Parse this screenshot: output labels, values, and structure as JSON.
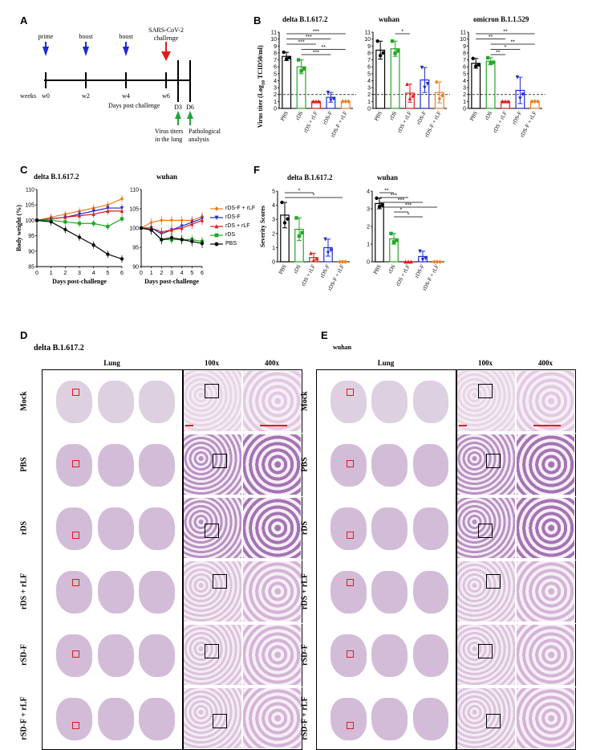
{
  "panels": {
    "A": "A",
    "B": "B",
    "C": "C",
    "D": "D",
    "E": "E",
    "F": "F"
  },
  "timeline": {
    "events": [
      "prime",
      "boost",
      "boost",
      "SARS-CoV-2",
      "challenge"
    ],
    "weeks_label": "weeks",
    "weeks": [
      "w0",
      "w2",
      "w4",
      "w6"
    ],
    "days_post_label": "Days post challenge",
    "days": [
      "D3",
      "D6"
    ],
    "outcome1": [
      "Virus titers",
      "in the lung"
    ],
    "outcome2": [
      "Pathological",
      "analysis"
    ]
  },
  "panel_b": {
    "ylabel": "Virus titer (Log",
    "ylabel_sub": "10",
    "ylabel_rest": " TCID50/ml)",
    "groups": [
      "PBS",
      "rDS",
      "rDS + rLF",
      "rDS-F",
      "rDS-F + rLF"
    ],
    "yticks": [
      "0",
      "1",
      "2",
      "3",
      "4",
      "5",
      "6",
      "7",
      "8",
      "9",
      "10",
      "11"
    ],
    "subtitles": [
      "delta B.1.617.2",
      "wuhan",
      "omicron B.1.1.529"
    ],
    "sig_delta": [
      "***",
      "***",
      "***",
      "**",
      "***"
    ],
    "sig_wuhan": [
      "*"
    ],
    "sig_omicron": [
      "**",
      "**",
      "**",
      "*",
      "**"
    ]
  },
  "chart_data": [
    {
      "type": "bar",
      "title": "delta B.1.617.2",
      "ylabel": "Virus titer (Log10 TCID50/ml)",
      "categories": [
        "PBS",
        "rDS",
        "rDS + rLF",
        "rDS-F",
        "rDS-F + rLF"
      ],
      "values": [
        7.5,
        6.0,
        1.0,
        1.6,
        1.0
      ],
      "errors": [
        0.6,
        1.0,
        0,
        0.7,
        0
      ],
      "ylim": [
        0,
        11
      ],
      "detection_limit": 2
    },
    {
      "type": "bar",
      "title": "wuhan",
      "ylabel": "",
      "categories": [
        "PBS",
        "rDS",
        "rDS + rLF",
        "rDS-F",
        "rDS-F + rLF"
      ],
      "values": [
        8.4,
        8.6,
        2.2,
        4.1,
        2.3
      ],
      "errors": [
        1.3,
        1.1,
        1.3,
        1.8,
        1.5
      ],
      "ylim": [
        0,
        11
      ],
      "detection_limit": 2
    },
    {
      "type": "bar",
      "title": "omicron B.1.1.529",
      "ylabel": "",
      "categories": [
        "PBS",
        "rDS",
        "rDS + rLF",
        "rDS-F",
        "rDS-F + rLF"
      ],
      "values": [
        6.5,
        6.8,
        1.0,
        2.6,
        1.0
      ],
      "errors": [
        0.7,
        0.5,
        0,
        1.9,
        0
      ],
      "ylim": [
        0,
        11
      ],
      "detection_limit": 2
    },
    {
      "type": "line",
      "title": "delta B.1.617.2",
      "xlabel": "Days post-challenge",
      "ylabel": "Body weight (%)",
      "x": [
        0,
        1,
        2,
        3,
        4,
        5,
        6
      ],
      "xlim": [
        0,
        6
      ],
      "ylim": [
        85,
        110
      ],
      "yticks": [
        "85",
        "90",
        "95",
        "100",
        "105",
        "110"
      ],
      "series": [
        {
          "name": "rDS-F + rLF",
          "values": [
            100,
            101,
            102,
            103,
            104,
            105,
            107
          ]
        },
        {
          "name": "rDS-F",
          "values": [
            100,
            100.5,
            101,
            102,
            103,
            104,
            104
          ]
        },
        {
          "name": "rDS + rLF",
          "values": [
            100,
            100.5,
            101,
            101.5,
            102,
            103,
            103
          ]
        },
        {
          "name": "rDS",
          "values": [
            100,
            100,
            99.5,
            99,
            99,
            98,
            100.5
          ]
        },
        {
          "name": "PBS",
          "values": [
            100,
            99.5,
            97,
            94.5,
            92,
            89,
            87.5
          ]
        }
      ]
    },
    {
      "type": "line",
      "title": "wuhan",
      "xlabel": "Days post-challenge",
      "ylabel": "",
      "x": [
        0,
        1,
        2,
        3,
        4,
        5,
        6
      ],
      "xlim": [
        0,
        6
      ],
      "ylim": [
        90,
        110
      ],
      "yticks": [
        "90",
        "95",
        "100",
        "105",
        "110"
      ],
      "series": [
        {
          "name": "rDS-F + rLF",
          "values": [
            100,
            101.5,
            102,
            102,
            102,
            102,
            103
          ]
        },
        {
          "name": "rDS-F",
          "values": [
            100,
            100,
            98.5,
            99.5,
            100.5,
            101.5,
            102.5
          ]
        },
        {
          "name": "rDS + rLF",
          "values": [
            100,
            100,
            99,
            99.5,
            100,
            101,
            102
          ]
        },
        {
          "name": "rDS",
          "values": [
            100,
            99.5,
            97,
            97,
            97,
            97,
            96.5
          ]
        },
        {
          "name": "PBS",
          "values": [
            100,
            99.5,
            97,
            97.5,
            97,
            96.5,
            96
          ]
        }
      ]
    },
    {
      "type": "bar",
      "title": "delta B.1.617.2",
      "ylabel": "Severity Scores",
      "categories": [
        "PBS",
        "rDS",
        "rDS + rLF",
        "rDS-F",
        "rDS-F + rLF"
      ],
      "values": [
        3.3,
        2.3,
        0.3,
        1.0,
        0.0
      ],
      "errors": [
        0.9,
        0.8,
        0.3,
        0.6,
        0
      ],
      "ylim": [
        0,
        5
      ],
      "yticks": [
        "0",
        "1",
        "2",
        "3",
        "4",
        "5"
      ]
    },
    {
      "type": "bar",
      "title": "wuhan",
      "ylabel": "",
      "categories": [
        "PBS",
        "rDS",
        "rDS + rLF",
        "rDS-F",
        "rDS-F + rLF"
      ],
      "values": [
        3.3,
        1.3,
        0.0,
        0.3,
        0.0
      ],
      "errors": [
        0.3,
        0.3,
        0,
        0.3,
        0
      ],
      "ylim": [
        0,
        4
      ],
      "yticks": [
        "0",
        "1",
        "2",
        "3",
        "4"
      ]
    }
  ],
  "panel_c": {
    "legend": [
      "rDS-F + rLF",
      "rDS-F",
      "rDS + rLF",
      "rDS",
      "PBS"
    ],
    "colors": [
      "#f07c1c",
      "#1f2bd6",
      "#e01b1b",
      "#21a821",
      "#000000"
    ]
  },
  "panel_f": {
    "sig_delta": [
      "*",
      "*"
    ],
    "sig_wuhan": [
      "**",
      "***",
      "***",
      "***",
      "*",
      "*"
    ]
  },
  "histology": {
    "left_title": "delta B.1.617.2",
    "right_title": "wuhan",
    "col_headers": [
      "Lung",
      "100x",
      "400x"
    ],
    "rows": [
      "Mock",
      "PBS",
      "rDS",
      "rDS + rLF",
      "rSD-F",
      "rSD-F + rLF"
    ]
  }
}
